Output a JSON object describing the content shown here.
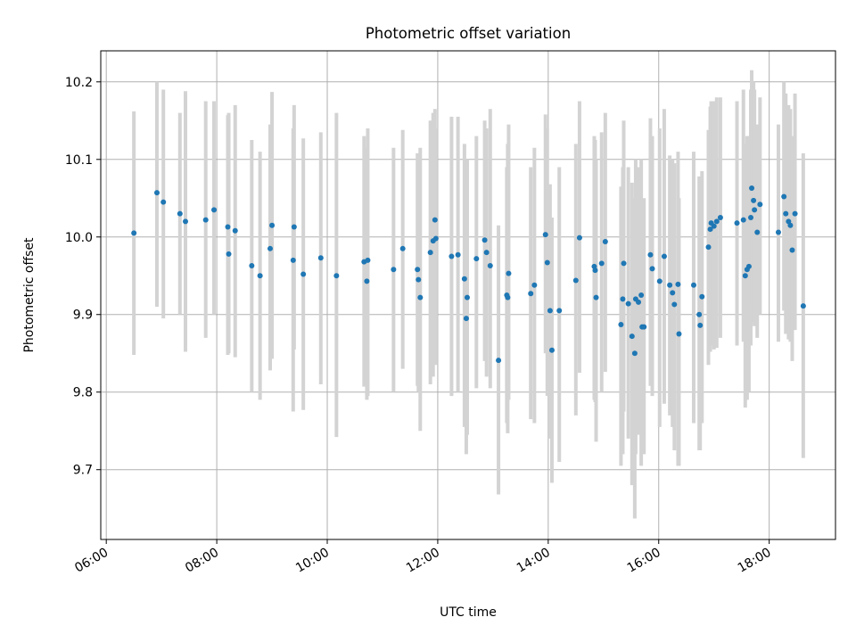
{
  "chart_data": {
    "type": "scatter",
    "title": "Photometric offset variation",
    "xlabel": "UTC time",
    "ylabel": "Photometric offset",
    "x_unit": "hours (UTC)",
    "xlim": [
      "05:54",
      "19:12"
    ],
    "ylim": [
      9.61,
      10.24
    ],
    "x_ticks": [
      "06:00",
      "08:00",
      "10:00",
      "12:00",
      "14:00",
      "16:00",
      "18:00"
    ],
    "y_ticks": [
      9.7,
      9.8,
      9.9,
      10.0,
      10.1,
      10.2
    ],
    "grid": true,
    "colors": {
      "point": "#1f77b4",
      "errorbar": "#d3d3d3",
      "grid": "#b0b0b0",
      "axes": "#000000"
    },
    "series": [
      {
        "values": [
          {
            "x": "06:30",
            "y": 10.005,
            "lo": 9.848,
            "hi": 10.162
          },
          {
            "x": "06:55",
            "y": 10.057,
            "lo": 9.91,
            "hi": 10.2
          },
          {
            "x": "07:02",
            "y": 10.045,
            "lo": 9.895,
            "hi": 10.19
          },
          {
            "x": "07:20",
            "y": 10.03,
            "lo": 9.9,
            "hi": 10.16
          },
          {
            "x": "07:26",
            "y": 10.02,
            "lo": 9.852,
            "hi": 10.188
          },
          {
            "x": "07:48",
            "y": 10.022,
            "lo": 9.87,
            "hi": 10.175
          },
          {
            "x": "07:57",
            "y": 10.035,
            "lo": 9.9,
            "hi": 10.175
          },
          {
            "x": "08:12",
            "y": 10.013,
            "lo": 9.848,
            "hi": 10.157
          },
          {
            "x": "08:13",
            "y": 9.978,
            "lo": 9.85,
            "hi": 10.16
          },
          {
            "x": "08:20",
            "y": 10.008,
            "lo": 9.845,
            "hi": 10.17
          },
          {
            "x": "08:38",
            "y": 9.963,
            "lo": 9.8,
            "hi": 10.125
          },
          {
            "x": "08:47",
            "y": 9.95,
            "lo": 9.79,
            "hi": 10.11
          },
          {
            "x": "08:58",
            "y": 9.985,
            "lo": 9.828,
            "hi": 10.145
          },
          {
            "x": "09:00",
            "y": 10.015,
            "lo": 9.843,
            "hi": 10.187
          },
          {
            "x": "09:23",
            "y": 9.97,
            "lo": 9.775,
            "hi": 10.14
          },
          {
            "x": "09:24",
            "y": 10.013,
            "lo": 9.855,
            "hi": 10.17
          },
          {
            "x": "09:34",
            "y": 9.952,
            "lo": 9.777,
            "hi": 10.127
          },
          {
            "x": "09:53",
            "y": 9.973,
            "lo": 9.81,
            "hi": 10.135
          },
          {
            "x": "10:10",
            "y": 9.95,
            "lo": 9.742,
            "hi": 10.16
          },
          {
            "x": "10:40",
            "y": 9.968,
            "lo": 9.807,
            "hi": 10.13
          },
          {
            "x": "10:43",
            "y": 9.943,
            "lo": 9.79,
            "hi": 10.115
          },
          {
            "x": "10:44",
            "y": 9.97,
            "lo": 9.795,
            "hi": 10.14
          },
          {
            "x": "11:12",
            "y": 9.958,
            "lo": 9.8,
            "hi": 10.115
          },
          {
            "x": "11:22",
            "y": 9.985,
            "lo": 9.83,
            "hi": 10.138
          },
          {
            "x": "11:38",
            "y": 9.958,
            "lo": 9.808,
            "hi": 10.108
          },
          {
            "x": "11:39",
            "y": 9.945,
            "lo": 9.8,
            "hi": 10.095
          },
          {
            "x": "11:41",
            "y": 9.922,
            "lo": 9.75,
            "hi": 10.115
          },
          {
            "x": "11:52",
            "y": 9.98,
            "lo": 9.81,
            "hi": 10.15
          },
          {
            "x": "11:55",
            "y": 9.995,
            "lo": 9.82,
            "hi": 10.16
          },
          {
            "x": "11:57",
            "y": 10.022,
            "lo": 9.88,
            "hi": 10.165
          },
          {
            "x": "11:58",
            "y": 9.998,
            "lo": 9.835,
            "hi": 10.14
          },
          {
            "x": "12:15",
            "y": 9.975,
            "lo": 9.795,
            "hi": 10.155
          },
          {
            "x": "12:22",
            "y": 9.977,
            "lo": 9.8,
            "hi": 10.155
          },
          {
            "x": "12:29",
            "y": 9.946,
            "lo": 9.755,
            "hi": 10.12
          },
          {
            "x": "12:31",
            "y": 9.895,
            "lo": 9.72,
            "hi": 10.07
          },
          {
            "x": "12:32",
            "y": 9.922,
            "lo": 9.745,
            "hi": 10.1
          },
          {
            "x": "12:42",
            "y": 9.972,
            "lo": 9.805,
            "hi": 10.13
          },
          {
            "x": "12:51",
            "y": 9.996,
            "lo": 9.84,
            "hi": 10.15
          },
          {
            "x": "12:53",
            "y": 9.98,
            "lo": 9.82,
            "hi": 10.14
          },
          {
            "x": "12:57",
            "y": 9.963,
            "lo": 9.805,
            "hi": 10.165
          },
          {
            "x": "13:06",
            "y": 9.841,
            "lo": 9.668,
            "hi": 10.015
          },
          {
            "x": "13:15",
            "y": 9.925,
            "lo": 9.76,
            "hi": 10.09
          },
          {
            "x": "13:16",
            "y": 9.922,
            "lo": 9.747,
            "hi": 10.12
          },
          {
            "x": "13:17",
            "y": 9.953,
            "lo": 9.79,
            "hi": 10.145
          },
          {
            "x": "13:41",
            "y": 9.927,
            "lo": 9.765,
            "hi": 10.09
          },
          {
            "x": "13:45",
            "y": 9.938,
            "lo": 9.76,
            "hi": 10.115
          },
          {
            "x": "13:57",
            "y": 10.003,
            "lo": 9.85,
            "hi": 10.158
          },
          {
            "x": "13:59",
            "y": 9.967,
            "lo": 9.795,
            "hi": 10.14
          },
          {
            "x": "14:02",
            "y": 9.905,
            "lo": 9.74,
            "hi": 10.068
          },
          {
            "x": "14:04",
            "y": 9.854,
            "lo": 9.683,
            "hi": 10.025
          },
          {
            "x": "14:12",
            "y": 9.905,
            "lo": 9.71,
            "hi": 10.09
          },
          {
            "x": "14:30",
            "y": 9.944,
            "lo": 9.77,
            "hi": 10.12
          },
          {
            "x": "14:34",
            "y": 9.999,
            "lo": 9.825,
            "hi": 10.175
          },
          {
            "x": "14:50",
            "y": 9.962,
            "lo": 9.79,
            "hi": 10.13
          },
          {
            "x": "14:51",
            "y": 9.957,
            "lo": 9.787,
            "hi": 10.125
          },
          {
            "x": "14:52",
            "y": 9.922,
            "lo": 9.736,
            "hi": 10.1
          },
          {
            "x": "14:58",
            "y": 9.966,
            "lo": 9.8,
            "hi": 10.135
          },
          {
            "x": "15:02",
            "y": 9.994,
            "lo": 9.826,
            "hi": 10.16
          },
          {
            "x": "15:19",
            "y": 9.887,
            "lo": 9.705,
            "hi": 10.065
          },
          {
            "x": "15:21",
            "y": 9.92,
            "lo": 9.72,
            "hi": 10.09
          },
          {
            "x": "15:22",
            "y": 9.966,
            "lo": 9.775,
            "hi": 10.15
          },
          {
            "x": "15:27",
            "y": 9.914,
            "lo": 9.74,
            "hi": 10.09
          },
          {
            "x": "15:31",
            "y": 9.872,
            "lo": 9.68,
            "hi": 10.07
          },
          {
            "x": "15:34",
            "y": 9.85,
            "lo": 9.637,
            "hi": 10.05
          },
          {
            "x": "15:35",
            "y": 9.92,
            "lo": 9.72,
            "hi": 10.1
          },
          {
            "x": "15:38",
            "y": 9.916,
            "lo": 9.745,
            "hi": 10.09
          },
          {
            "x": "15:41",
            "y": 9.925,
            "lo": 9.705,
            "hi": 10.1
          },
          {
            "x": "15:42",
            "y": 9.884,
            "lo": 9.73,
            "hi": 10.043
          },
          {
            "x": "15:44",
            "y": 9.884,
            "lo": 9.72,
            "hi": 10.05
          },
          {
            "x": "15:51",
            "y": 9.977,
            "lo": 9.808,
            "hi": 10.153
          },
          {
            "x": "15:53",
            "y": 9.959,
            "lo": 9.795,
            "hi": 10.13
          },
          {
            "x": "16:01",
            "y": 9.943,
            "lo": 9.755,
            "hi": 10.14
          },
          {
            "x": "16:06",
            "y": 9.975,
            "lo": 9.785,
            "hi": 10.165
          },
          {
            "x": "16:12",
            "y": 9.938,
            "lo": 9.77,
            "hi": 10.105
          },
          {
            "x": "16:15",
            "y": 9.928,
            "lo": 9.755,
            "hi": 10.1
          },
          {
            "x": "16:17",
            "y": 9.913,
            "lo": 9.725,
            "hi": 10.095
          },
          {
            "x": "16:21",
            "y": 9.939,
            "lo": 9.705,
            "hi": 10.11
          },
          {
            "x": "16:22",
            "y": 9.875,
            "lo": 9.705,
            "hi": 10.05
          },
          {
            "x": "16:38",
            "y": 9.938,
            "lo": 9.76,
            "hi": 10.11
          },
          {
            "x": "16:44",
            "y": 9.9,
            "lo": 9.725,
            "hi": 10.078
          },
          {
            "x": "16:45",
            "y": 9.886,
            "lo": 9.725,
            "hi": 10.055
          },
          {
            "x": "16:47",
            "y": 9.923,
            "lo": 9.76,
            "hi": 10.085
          },
          {
            "x": "16:54",
            "y": 9.987,
            "lo": 9.835,
            "hi": 10.138
          },
          {
            "x": "16:56",
            "y": 10.01,
            "lo": 9.852,
            "hi": 10.168
          },
          {
            "x": "16:57",
            "y": 10.018,
            "lo": 9.86,
            "hi": 10.175
          },
          {
            "x": "17:00",
            "y": 10.014,
            "lo": 9.855,
            "hi": 10.175
          },
          {
            "x": "17:03",
            "y": 10.02,
            "lo": 9.857,
            "hi": 10.18
          },
          {
            "x": "17:07",
            "y": 10.025,
            "lo": 9.87,
            "hi": 10.18
          },
          {
            "x": "17:25",
            "y": 10.018,
            "lo": 9.86,
            "hi": 10.175
          },
          {
            "x": "17:32",
            "y": 10.022,
            "lo": 9.865,
            "hi": 10.19
          },
          {
            "x": "17:34",
            "y": 9.95,
            "lo": 9.78,
            "hi": 10.12
          },
          {
            "x": "17:36",
            "y": 9.958,
            "lo": 9.79,
            "hi": 10.13
          },
          {
            "x": "17:38",
            "y": 9.962,
            "lo": 9.8,
            "hi": 10.13
          },
          {
            "x": "17:40",
            "y": 10.025,
            "lo": 9.86,
            "hi": 10.19
          },
          {
            "x": "17:41",
            "y": 10.063,
            "lo": 9.91,
            "hi": 10.215
          },
          {
            "x": "17:43",
            "y": 10.047,
            "lo": 9.89,
            "hi": 10.2
          },
          {
            "x": "17:44",
            "y": 10.035,
            "lo": 9.885,
            "hi": 10.19
          },
          {
            "x": "17:47",
            "y": 10.006,
            "lo": 9.87,
            "hi": 10.145
          },
          {
            "x": "17:50",
            "y": 10.042,
            "lo": 9.9,
            "hi": 10.18
          },
          {
            "x": "18:10",
            "y": 10.006,
            "lo": 9.865,
            "hi": 10.145
          },
          {
            "x": "18:16",
            "y": 10.052,
            "lo": 9.905,
            "hi": 10.2
          },
          {
            "x": "18:18",
            "y": 10.03,
            "lo": 9.875,
            "hi": 10.185
          },
          {
            "x": "18:21",
            "y": 10.02,
            "lo": 9.868,
            "hi": 10.17
          },
          {
            "x": "18:23",
            "y": 10.015,
            "lo": 9.865,
            "hi": 10.165
          },
          {
            "x": "18:25",
            "y": 9.983,
            "lo": 9.84,
            "hi": 10.13
          },
          {
            "x": "18:28",
            "y": 10.03,
            "lo": 9.88,
            "hi": 10.185
          },
          {
            "x": "18:37",
            "y": 9.911,
            "lo": 9.715,
            "hi": 10.108
          }
        ]
      }
    ]
  }
}
